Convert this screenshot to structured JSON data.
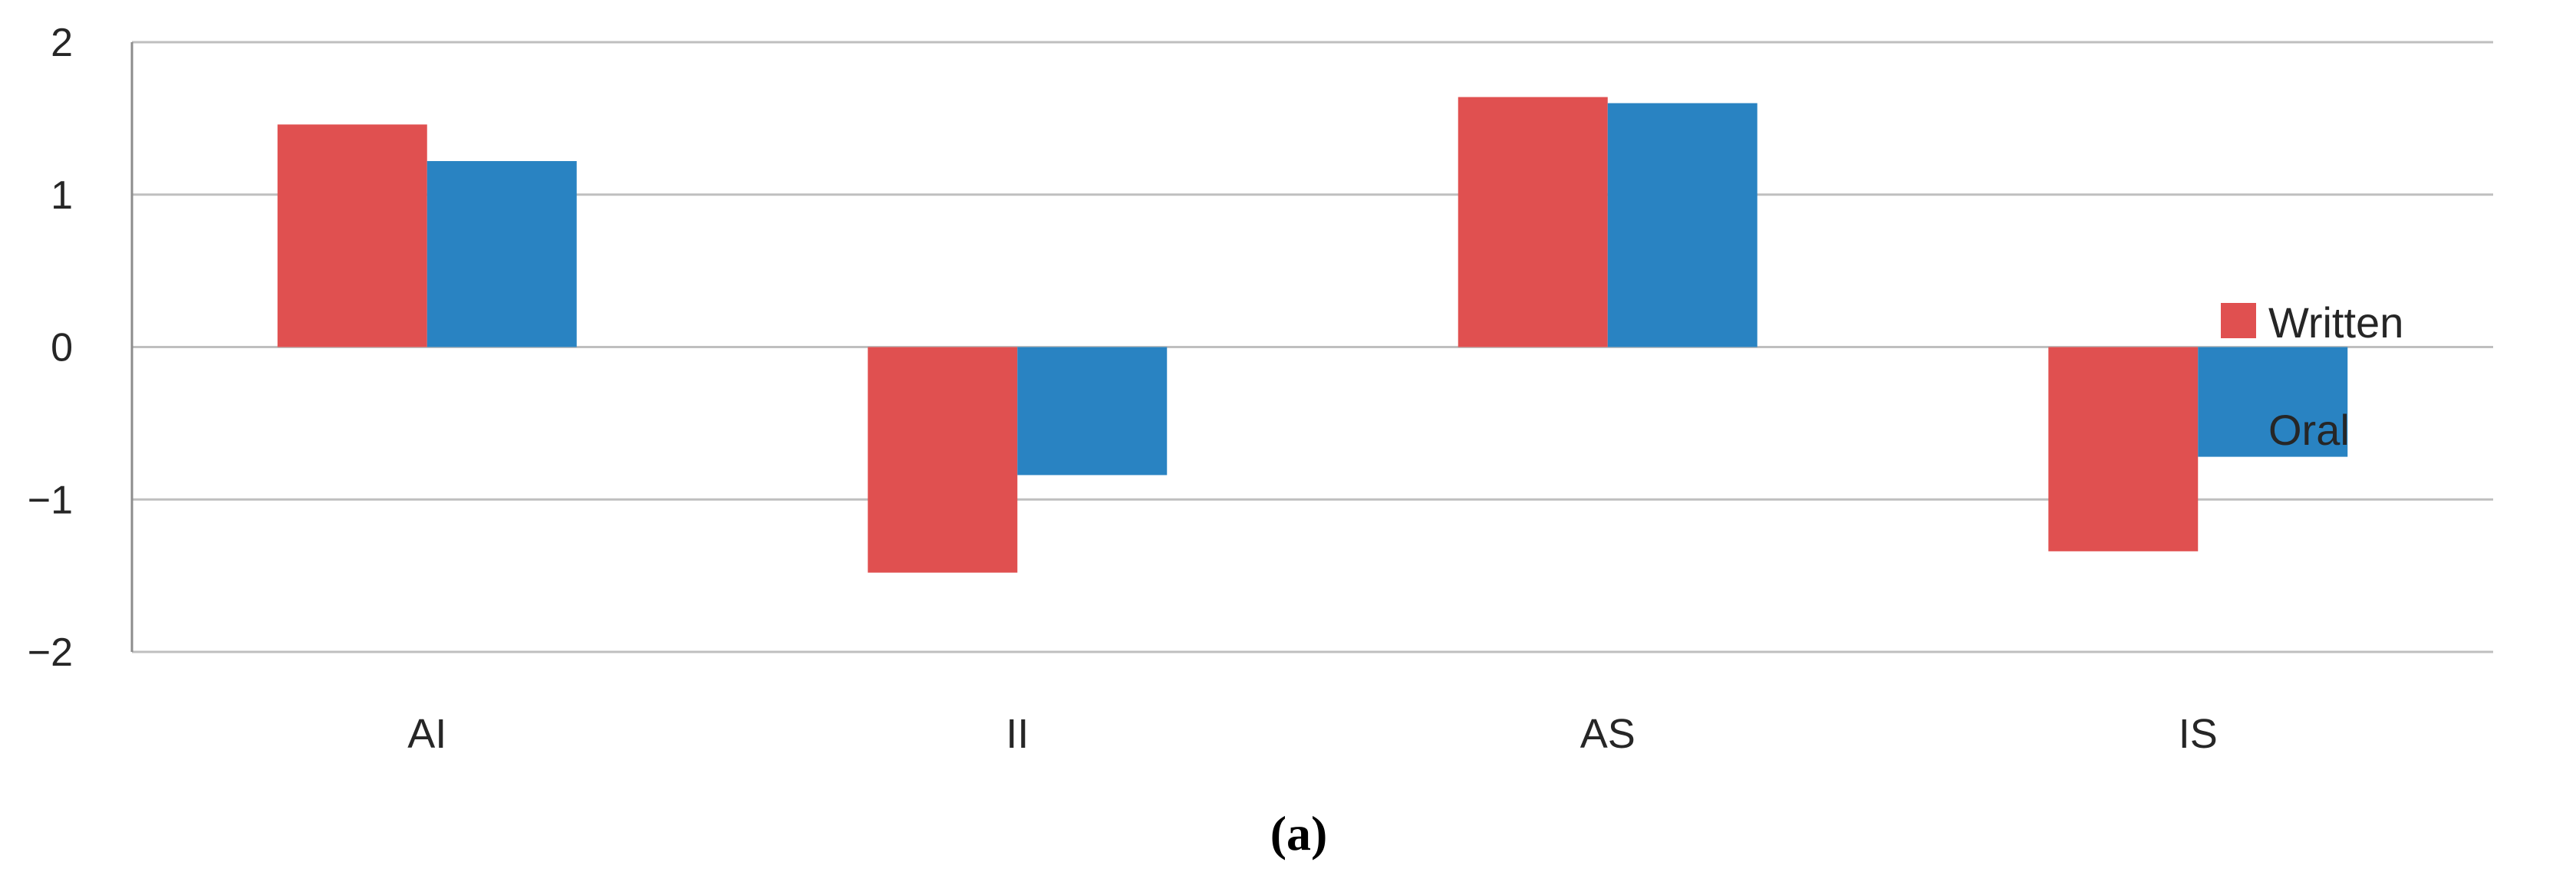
{
  "chart_data": {
    "type": "bar",
    "categories": [
      "AI",
      "II",
      "AS",
      "IS"
    ],
    "series": [
      {
        "name": "Written",
        "values": [
          1.46,
          -1.48,
          1.64,
          -1.34
        ],
        "color": "#e05050"
      },
      {
        "name": "Oral",
        "values": [
          1.22,
          -0.84,
          1.6,
          -0.72
        ],
        "color": "#2983c2"
      }
    ],
    "title": "",
    "xlabel": "",
    "ylabel": "",
    "ylim": [
      -2,
      2
    ],
    "yticks": [
      2,
      1,
      0,
      -1,
      -2
    ],
    "ytick_labels": [
      "2",
      "1",
      "0",
      "−1",
      "−2"
    ],
    "grid": true,
    "legend_position": "right",
    "caption": "(a)"
  }
}
